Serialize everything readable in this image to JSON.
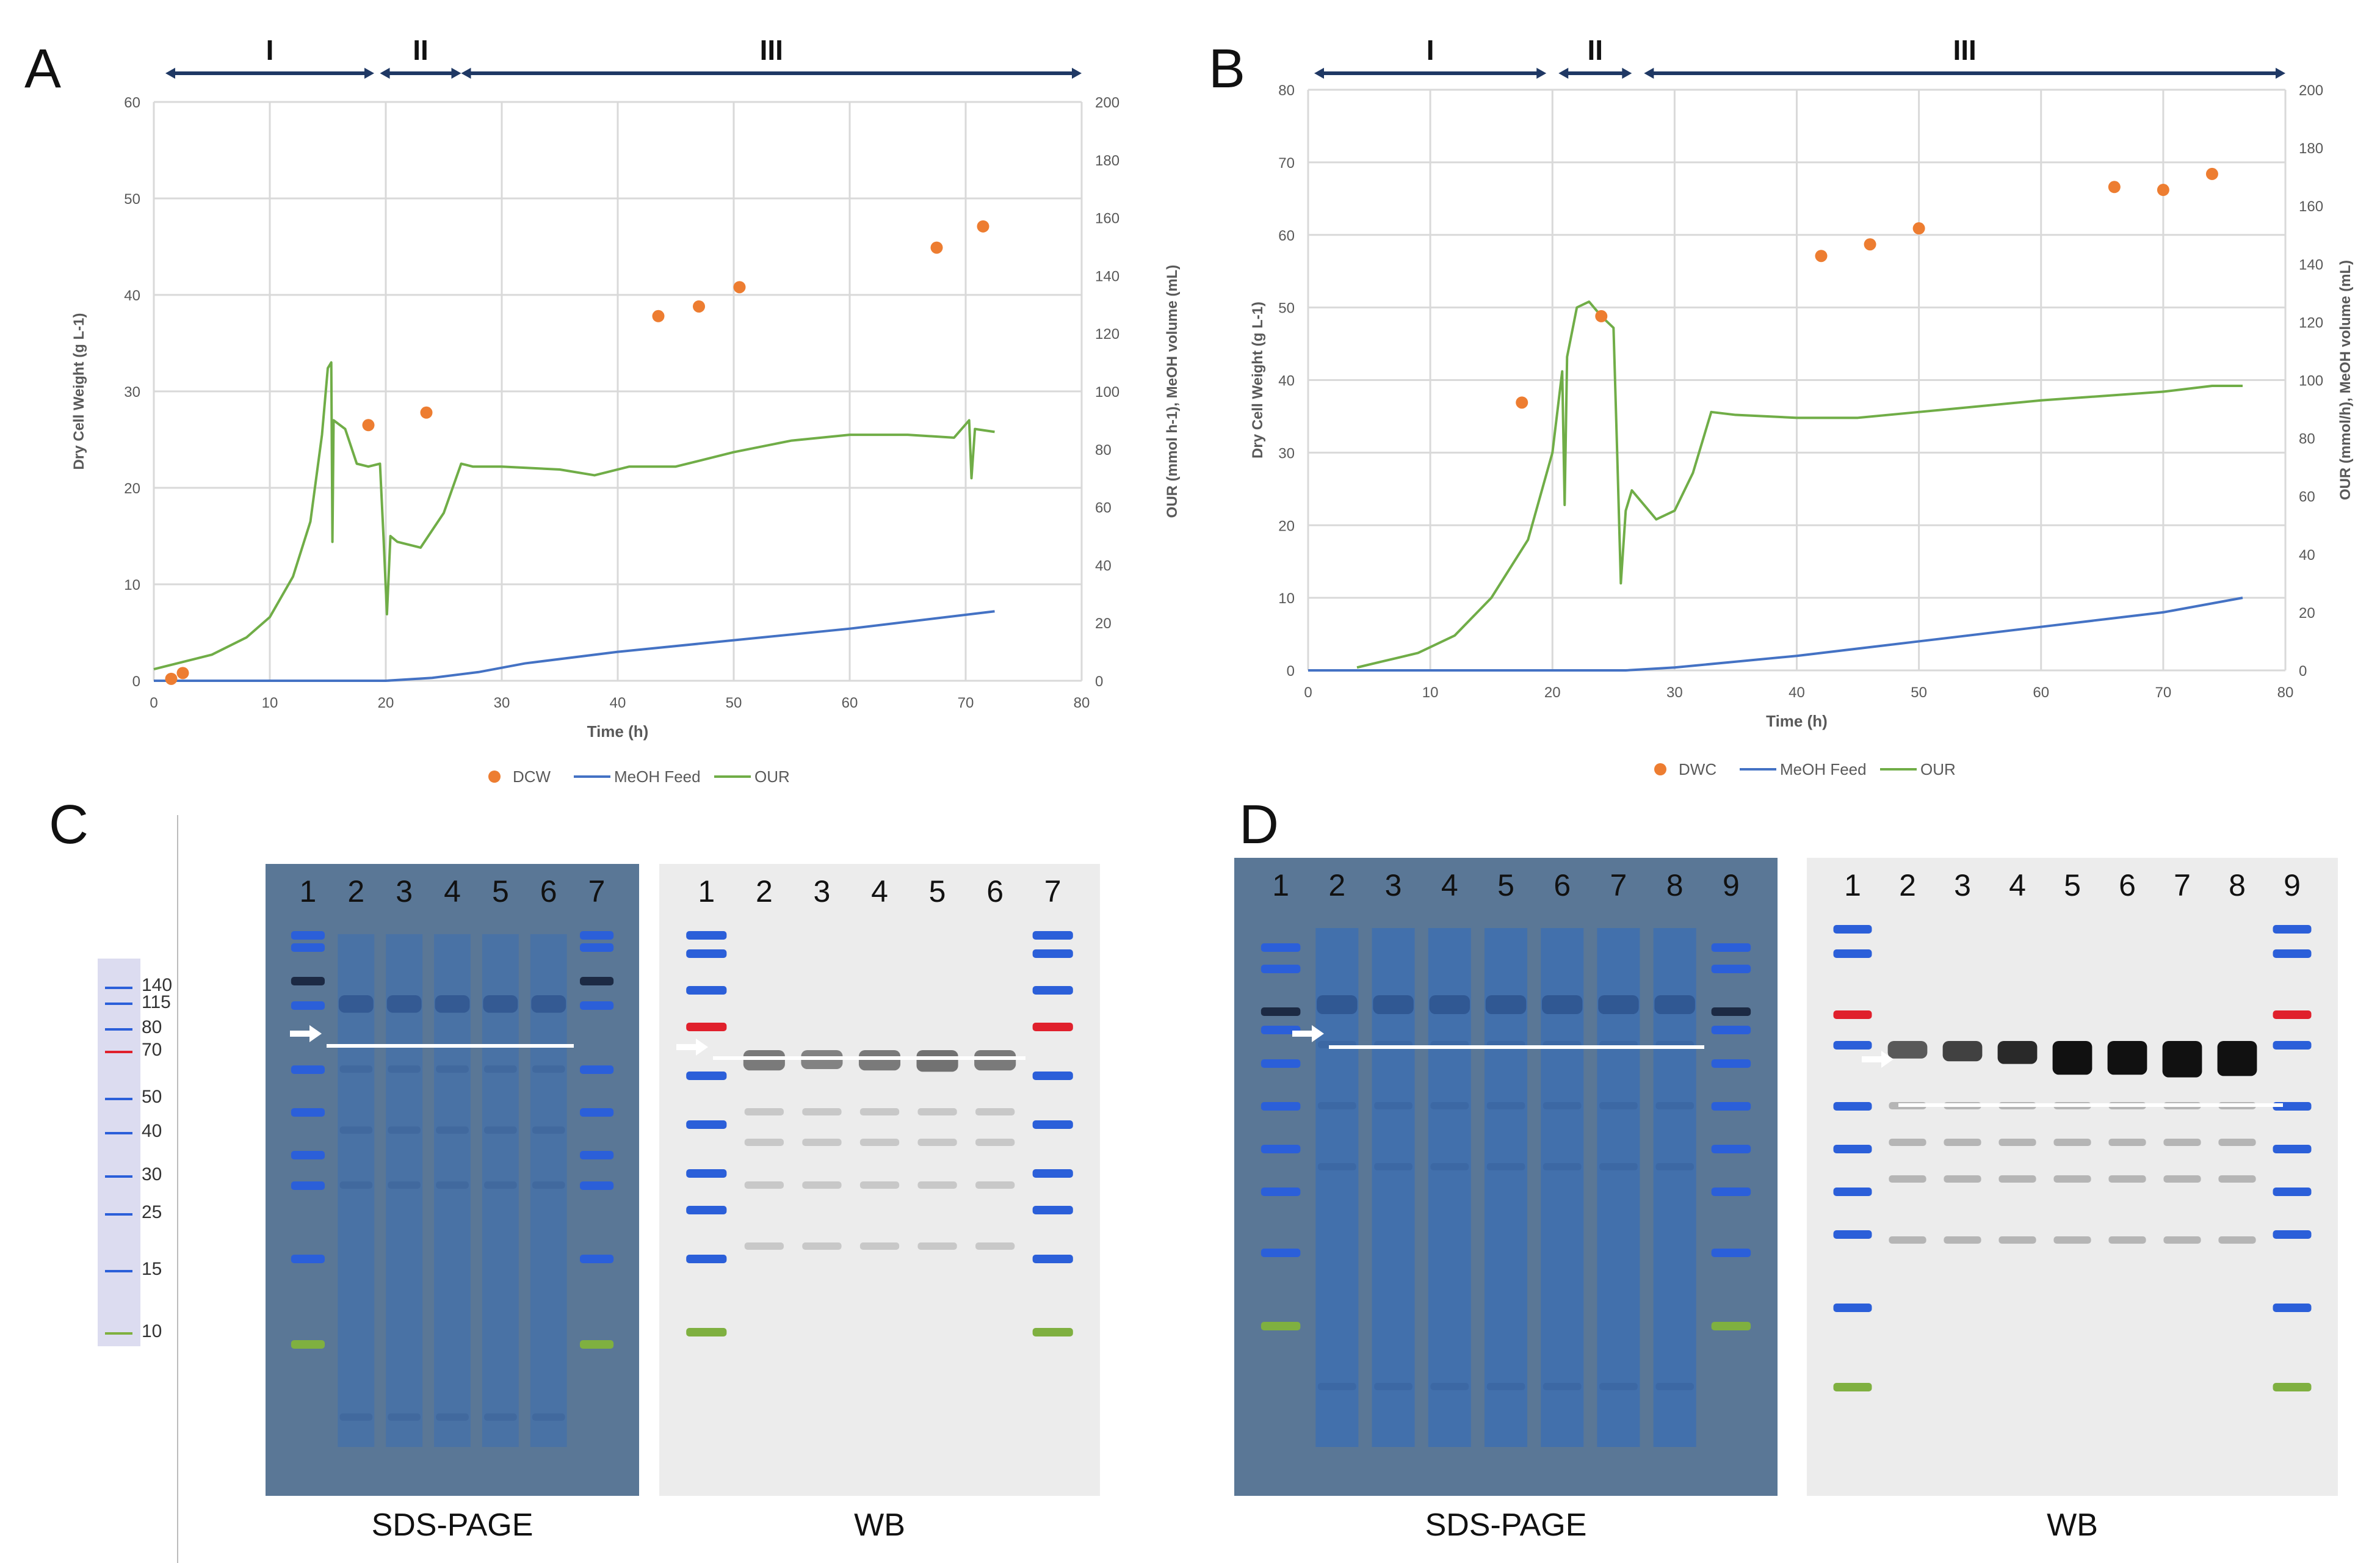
{
  "panel_labels": [
    "A",
    "B",
    "C",
    "D"
  ],
  "colors": {
    "dcw": "#ED7D31",
    "meoh": "#4472C4",
    "our": "#70AD47",
    "phase_arrow": "#1F3864",
    "grid": "#D9D9D9",
    "axis_text": "#595959",
    "coomassie_bg": "#5a7796",
    "wb_bg": "#ececec",
    "ladder_blue": "#2b5fd9",
    "ladder_red": "#e0202c",
    "ladder_green": "#7fb040"
  },
  "chart_data": [
    {
      "id": "A",
      "type": "line",
      "phases": [
        "I",
        "II",
        "III"
      ],
      "phase_ranges": [
        [
          1,
          19
        ],
        [
          19.5,
          26.5
        ],
        [
          26.5,
          80
        ]
      ],
      "xlabel": "Time (h)",
      "ylabel_left": "Dry Cell Weight (g L-1)",
      "ylabel_right": "OUR (mmol h-1), MeOH volume (mL)",
      "xlim": [
        0,
        80
      ],
      "xticks": [
        0,
        10,
        20,
        30,
        40,
        50,
        60,
        70,
        80
      ],
      "ylim_left": [
        0,
        60
      ],
      "yticks_left": [
        0,
        10,
        20,
        30,
        40,
        50,
        60
      ],
      "ylim_right": [
        0,
        200
      ],
      "yticks_right": [
        0,
        20,
        40,
        60,
        80,
        100,
        120,
        140,
        160,
        180,
        200
      ],
      "legend": [
        "DCW",
        "MeOH Feed",
        "OUR"
      ],
      "dcw_points": [
        [
          1.5,
          0.2
        ],
        [
          2.5,
          0.8
        ],
        [
          18.5,
          26.5
        ],
        [
          23.5,
          27.8
        ],
        [
          43.5,
          37.8
        ],
        [
          47,
          38.8
        ],
        [
          50.5,
          40.8
        ],
        [
          67.5,
          44.9
        ],
        [
          71.5,
          47.1
        ]
      ],
      "meoh_points": [
        [
          0,
          0
        ],
        [
          20,
          0
        ],
        [
          24,
          1
        ],
        [
          28,
          3
        ],
        [
          32,
          6
        ],
        [
          40,
          10
        ],
        [
          50,
          14
        ],
        [
          60,
          18
        ],
        [
          72.5,
          24
        ]
      ],
      "our_points": [
        [
          0,
          4
        ],
        [
          2,
          6
        ],
        [
          5,
          9
        ],
        [
          8,
          15
        ],
        [
          10,
          22
        ],
        [
          12,
          36
        ],
        [
          13.5,
          55
        ],
        [
          14.5,
          85
        ],
        [
          15,
          108
        ],
        [
          15.3,
          110
        ],
        [
          15.4,
          48
        ],
        [
          15.5,
          90
        ],
        [
          16.5,
          87
        ],
        [
          17.5,
          75
        ],
        [
          18.5,
          74
        ],
        [
          19.5,
          75
        ],
        [
          19.8,
          50
        ],
        [
          20.1,
          23
        ],
        [
          20.4,
          50
        ],
        [
          21,
          48
        ],
        [
          23,
          46
        ],
        [
          25,
          58
        ],
        [
          26.5,
          75
        ],
        [
          27.5,
          74
        ],
        [
          30,
          74
        ],
        [
          35,
          73
        ],
        [
          38,
          71
        ],
        [
          41,
          74
        ],
        [
          45,
          74
        ],
        [
          50,
          79
        ],
        [
          55,
          83
        ],
        [
          60,
          85
        ],
        [
          65,
          85
        ],
        [
          69,
          84
        ],
        [
          70.3,
          90
        ],
        [
          70.5,
          70
        ],
        [
          70.8,
          87
        ],
        [
          72.5,
          86
        ]
      ]
    },
    {
      "id": "B",
      "type": "line",
      "phases": [
        "I",
        "II",
        "III"
      ],
      "phase_ranges": [
        [
          0.5,
          19.5
        ],
        [
          20.5,
          26.5
        ],
        [
          27.5,
          80
        ]
      ],
      "xlabel": "Time (h)",
      "ylabel_left": "Dry Cell Weight (g L-1)",
      "ylabel_right": "OUR (mmol/h), MeOH volume (mL)",
      "xlim": [
        0,
        80
      ],
      "xticks": [
        0,
        10,
        20,
        30,
        40,
        50,
        60,
        70,
        80
      ],
      "ylim_left": [
        0,
        80
      ],
      "yticks_left": [
        0,
        10,
        20,
        30,
        40,
        50,
        60,
        70,
        80
      ],
      "ylim_right": [
        0,
        200
      ],
      "yticks_right": [
        0,
        20,
        40,
        60,
        80,
        100,
        120,
        140,
        160,
        180,
        200
      ],
      "legend": [
        "DWC",
        "MeOH Feed",
        "OUR"
      ],
      "dcw_points": [
        [
          17.5,
          36.9
        ],
        [
          24,
          48.8
        ],
        [
          42,
          57.1
        ],
        [
          46,
          58.7
        ],
        [
          50,
          60.9
        ],
        [
          66,
          66.6
        ],
        [
          70,
          66.2
        ],
        [
          74,
          68.4
        ]
      ],
      "meoh_points": [
        [
          0,
          0
        ],
        [
          26,
          0
        ],
        [
          30,
          1
        ],
        [
          35,
          3
        ],
        [
          40,
          5
        ],
        [
          50,
          10
        ],
        [
          60,
          15
        ],
        [
          70,
          20
        ],
        [
          76.5,
          25
        ]
      ],
      "our_points": [
        [
          4,
          1
        ],
        [
          6,
          3
        ],
        [
          9,
          6
        ],
        [
          12,
          12
        ],
        [
          15,
          25
        ],
        [
          18,
          45
        ],
        [
          20,
          75
        ],
        [
          20.8,
          103
        ],
        [
          21,
          57
        ],
        [
          21.2,
          108
        ],
        [
          22,
          125
        ],
        [
          23,
          127
        ],
        [
          24,
          122
        ],
        [
          24.5,
          120
        ],
        [
          25,
          118
        ],
        [
          25.3,
          75
        ],
        [
          25.6,
          30
        ],
        [
          26,
          55
        ],
        [
          26.5,
          62
        ],
        [
          27.5,
          57
        ],
        [
          28.5,
          52
        ],
        [
          30,
          55
        ],
        [
          31.5,
          68
        ],
        [
          33,
          89
        ],
        [
          35,
          88
        ],
        [
          40,
          87
        ],
        [
          45,
          87
        ],
        [
          50,
          89
        ],
        [
          60,
          93
        ],
        [
          70,
          96
        ],
        [
          74,
          98
        ],
        [
          76.5,
          98
        ]
      ]
    }
  ],
  "gels": {
    "C": {
      "sds_page": {
        "title": "SDS-PAGE",
        "lanes": [
          "1",
          "2",
          "3",
          "4",
          "5",
          "6",
          "7"
        ]
      },
      "wb": {
        "title": "WB",
        "lanes": [
          "1",
          "2",
          "3",
          "4",
          "5",
          "6",
          "7"
        ]
      },
      "ladder_labels": [
        "140",
        "115",
        "80",
        "70",
        "50",
        "40",
        "30",
        "25",
        "15",
        "10"
      ]
    },
    "D": {
      "sds_page": {
        "title": "SDS-PAGE",
        "lanes": [
          "1",
          "2",
          "3",
          "4",
          "5",
          "6",
          "7",
          "8",
          "9"
        ]
      },
      "wb": {
        "title": "WB",
        "lanes": [
          "1",
          "2",
          "3",
          "4",
          "5",
          "6",
          "7",
          "8",
          "9"
        ]
      }
    }
  }
}
